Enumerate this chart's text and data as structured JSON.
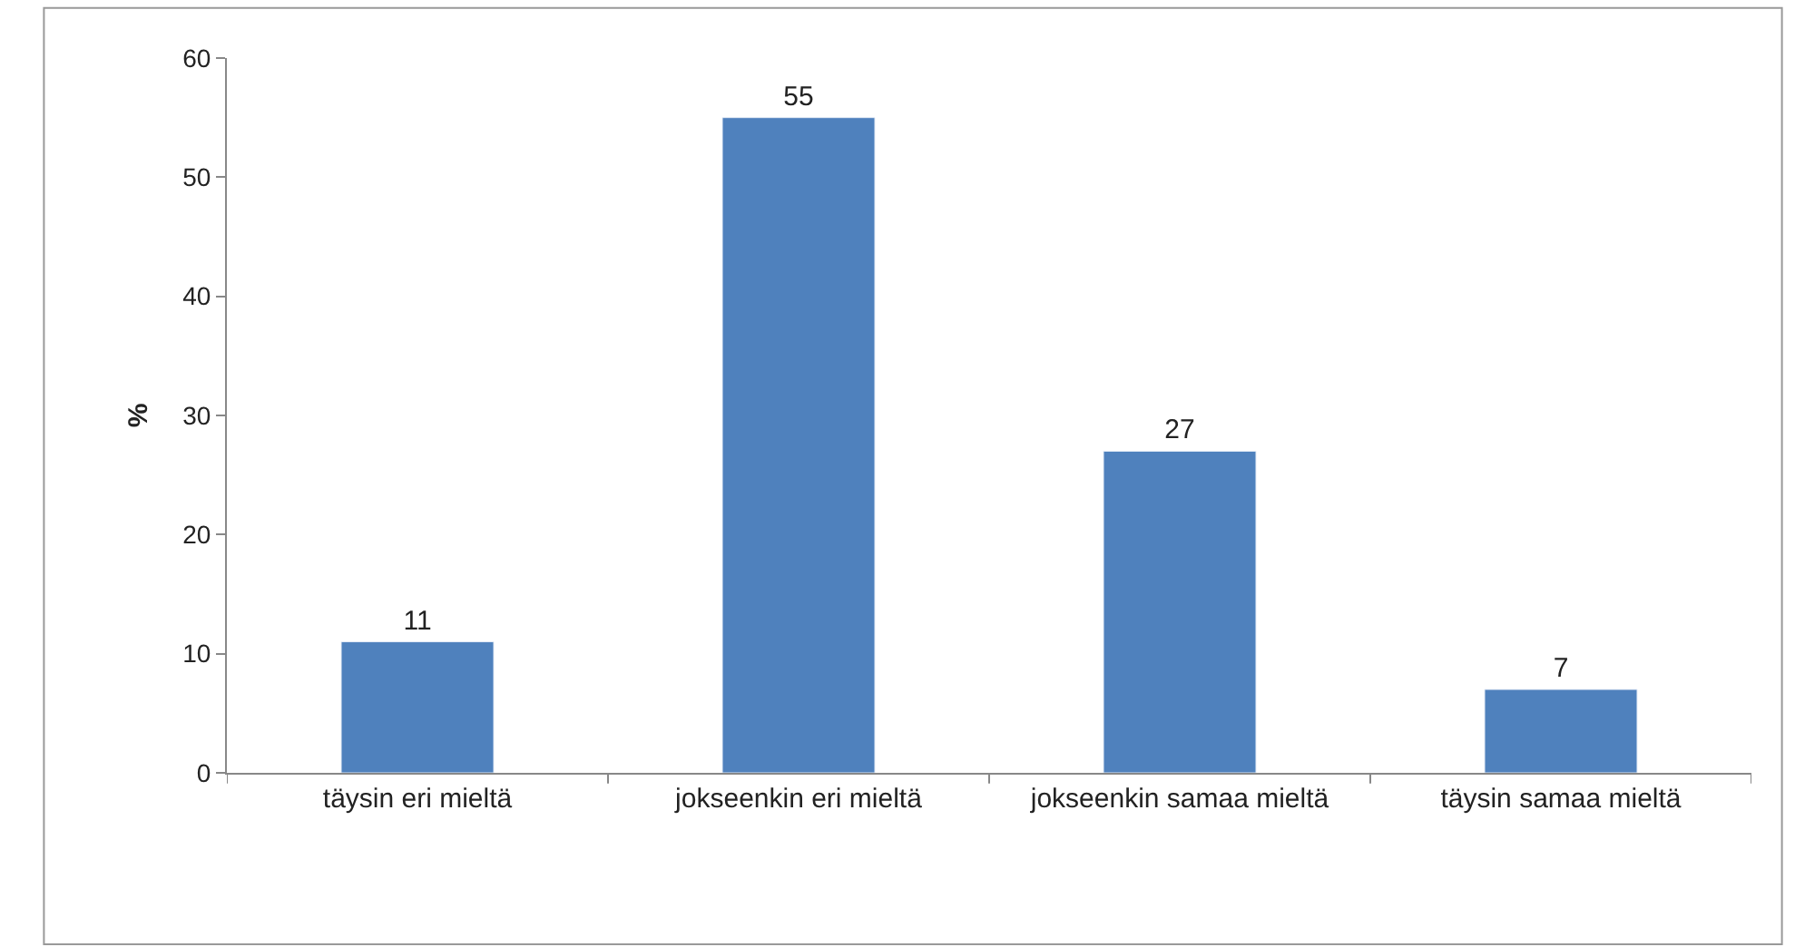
{
  "chart_data": {
    "type": "bar",
    "ylabel": "%",
    "categories": [
      "täysin eri mieltä",
      "jokseenkin eri mieltä",
      "jokseenkin samaa mieltä",
      "täysin samaa mieltä"
    ],
    "values": [
      11,
      55,
      27,
      7
    ],
    "color": "#4f81bd",
    "ylim": [
      0,
      60
    ],
    "yticks": [
      0,
      10,
      20,
      30,
      40,
      50,
      60
    ],
    "data_labels": true
  }
}
